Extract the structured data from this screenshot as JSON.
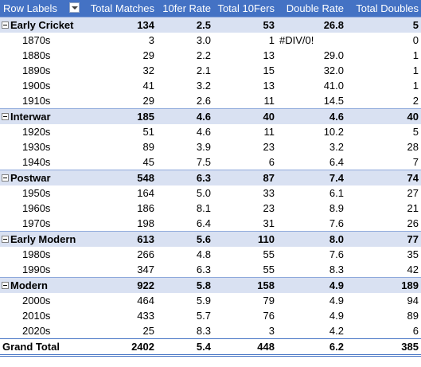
{
  "columns": {
    "row_labels": "Row Labels",
    "total_matches": "Total Matches",
    "tenfer_rate": "10fer Rate",
    "total_tenfers": "Total 10Fers",
    "double_rate": "Double Rate",
    "total_doubles": "Total Doubles"
  },
  "groups": [
    {
      "label": "Early Cricket",
      "matches": "134",
      "rate": "2.5",
      "tenfers": "53",
      "drate": "26.8",
      "doubles": "5",
      "rows": [
        {
          "label": "1870s",
          "matches": "3",
          "rate": "3.0",
          "tenfers": "1",
          "drate": "#DIV/0!",
          "doubles": "0"
        },
        {
          "label": "1880s",
          "matches": "29",
          "rate": "2.2",
          "tenfers": "13",
          "drate": "29.0",
          "doubles": "1"
        },
        {
          "label": "1890s",
          "matches": "32",
          "rate": "2.1",
          "tenfers": "15",
          "drate": "32.0",
          "doubles": "1"
        },
        {
          "label": "1900s",
          "matches": "41",
          "rate": "3.2",
          "tenfers": "13",
          "drate": "41.0",
          "doubles": "1"
        },
        {
          "label": "1910s",
          "matches": "29",
          "rate": "2.6",
          "tenfers": "11",
          "drate": "14.5",
          "doubles": "2"
        }
      ]
    },
    {
      "label": "Interwar",
      "matches": "185",
      "rate": "4.6",
      "tenfers": "40",
      "drate": "4.6",
      "doubles": "40",
      "rows": [
        {
          "label": "1920s",
          "matches": "51",
          "rate": "4.6",
          "tenfers": "11",
          "drate": "10.2",
          "doubles": "5"
        },
        {
          "label": "1930s",
          "matches": "89",
          "rate": "3.9",
          "tenfers": "23",
          "drate": "3.2",
          "doubles": "28"
        },
        {
          "label": "1940s",
          "matches": "45",
          "rate": "7.5",
          "tenfers": "6",
          "drate": "6.4",
          "doubles": "7"
        }
      ]
    },
    {
      "label": "Postwar",
      "matches": "548",
      "rate": "6.3",
      "tenfers": "87",
      "drate": "7.4",
      "doubles": "74",
      "rows": [
        {
          "label": "1950s",
          "matches": "164",
          "rate": "5.0",
          "tenfers": "33",
          "drate": "6.1",
          "doubles": "27"
        },
        {
          "label": "1960s",
          "matches": "186",
          "rate": "8.1",
          "tenfers": "23",
          "drate": "8.9",
          "doubles": "21"
        },
        {
          "label": "1970s",
          "matches": "198",
          "rate": "6.4",
          "tenfers": "31",
          "drate": "7.6",
          "doubles": "26"
        }
      ]
    },
    {
      "label": "Early Modern",
      "matches": "613",
      "rate": "5.6",
      "tenfers": "110",
      "drate": "8.0",
      "doubles": "77",
      "rows": [
        {
          "label": "1980s",
          "matches": "266",
          "rate": "4.8",
          "tenfers": "55",
          "drate": "7.6",
          "doubles": "35"
        },
        {
          "label": "1990s",
          "matches": "347",
          "rate": "6.3",
          "tenfers": "55",
          "drate": "8.3",
          "doubles": "42"
        }
      ]
    },
    {
      "label": "Modern",
      "matches": "922",
      "rate": "5.8",
      "tenfers": "158",
      "drate": "4.9",
      "doubles": "189",
      "rows": [
        {
          "label": "2000s",
          "matches": "464",
          "rate": "5.9",
          "tenfers": "79",
          "drate": "4.9",
          "doubles": "94"
        },
        {
          "label": "2010s",
          "matches": "433",
          "rate": "5.7",
          "tenfers": "76",
          "drate": "4.9",
          "doubles": "89"
        },
        {
          "label": "2020s",
          "matches": "25",
          "rate": "8.3",
          "tenfers": "3",
          "drate": "4.2",
          "doubles": "6"
        }
      ]
    }
  ],
  "grand_total": {
    "label": "Grand Total",
    "matches": "2402",
    "rate": "5.4",
    "tenfers": "448",
    "drate": "6.2",
    "doubles": "385"
  }
}
